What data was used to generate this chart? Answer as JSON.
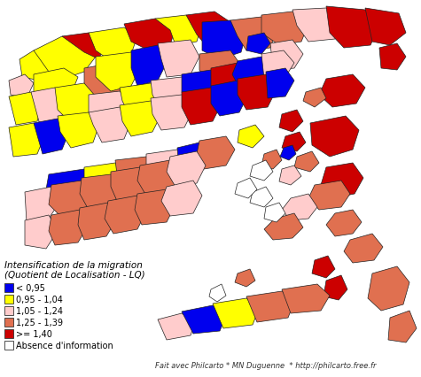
{
  "legend_title_line1": "Intensification de la migration",
  "legend_title_line2": "(Quotient de Localisation - LQ)",
  "legend_entries": [
    {
      "label": "< 0,95",
      "color": "#0000EE"
    },
    {
      "label": "0,95 - 1,04",
      "color": "#FFFF00"
    },
    {
      "label": "1,05 - 1,24",
      "color": "#FFCCCC"
    },
    {
      "label": "1,25 - 1,39",
      "color": "#E07050"
    },
    {
      "label": ">= 1,40",
      "color": "#CC0000"
    },
    {
      "label": "Absence d'information",
      "color": "#FFFFFF"
    }
  ],
  "attribution": "Fait avec Philcarto * MN Duguenne  * http://philcarto.free.fr",
  "background_color": "#FFFFFF",
  "legend_fontsize": 7.0,
  "legend_title_fontsize": 7.5,
  "attribution_fontsize": 6.0,
  "figsize": [
    4.75,
    4.27
  ],
  "dpi": 100
}
